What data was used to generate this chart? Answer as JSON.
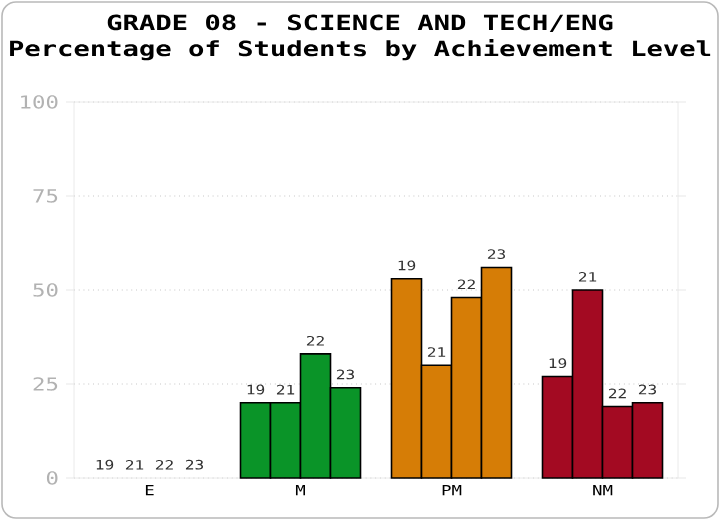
{
  "chart_data": {
    "type": "bar",
    "title": "GRADE 08 - SCIENCE AND TECH/ENG",
    "subtitle": "Percentage of Students by Achievement Level",
    "categories": [
      "E",
      "M",
      "PM",
      "NM"
    ],
    "series": [
      {
        "name": "19",
        "colors": [
          null,
          "#0a9428",
          "#d67d06",
          "#a30a22"
        ],
        "values": [
          0,
          20,
          53,
          27
        ]
      },
      {
        "name": "21",
        "colors": [
          null,
          "#0a9428",
          "#d67d06",
          "#a30a22"
        ],
        "values": [
          0,
          20,
          30,
          50
        ]
      },
      {
        "name": "22",
        "colors": [
          null,
          "#0a9428",
          "#d67d06",
          "#a30a22"
        ],
        "values": [
          0,
          33,
          48,
          19
        ]
      },
      {
        "name": "23",
        "colors": [
          null,
          "#0a9428",
          "#d67d06",
          "#a30a22"
        ],
        "values": [
          0,
          24,
          56,
          20
        ]
      }
    ],
    "ylim": [
      0,
      100
    ],
    "yticks": [
      0,
      25,
      50,
      75,
      100
    ],
    "grid": "y"
  }
}
